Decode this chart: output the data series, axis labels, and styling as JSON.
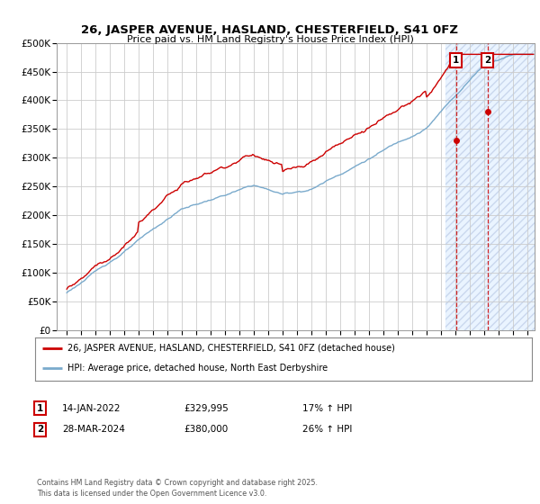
{
  "title": "26, JASPER AVENUE, HASLAND, CHESTERFIELD, S41 0FZ",
  "subtitle": "Price paid vs. HM Land Registry's House Price Index (HPI)",
  "ylim": [
    0,
    500000
  ],
  "yticks": [
    0,
    50000,
    100000,
    150000,
    200000,
    250000,
    300000,
    350000,
    400000,
    450000,
    500000
  ],
  "ytick_labels": [
    "£0",
    "£50K",
    "£100K",
    "£150K",
    "£200K",
    "£250K",
    "£300K",
    "£350K",
    "£400K",
    "£450K",
    "£500K"
  ],
  "legend1_label": "26, JASPER AVENUE, HASLAND, CHESTERFIELD, S41 0FZ (detached house)",
  "legend2_label": "HPI: Average price, detached house, North East Derbyshire",
  "annotation1_date": "14-JAN-2022",
  "annotation1_price": "£329,995",
  "annotation1_hpi": "17% ↑ HPI",
  "annotation2_date": "28-MAR-2024",
  "annotation2_price": "£380,000",
  "annotation2_hpi": "26% ↑ HPI",
  "copyright_text": "Contains HM Land Registry data © Crown copyright and database right 2025.\nThis data is licensed under the Open Government Licence v3.0.",
  "red_color": "#cc0000",
  "blue_color": "#7aaacc",
  "background_color": "#ffffff",
  "grid_color": "#cccccc",
  "shade_color": "#ddeeff",
  "shade_alpha": 0.6,
  "xlim_left": 1994.3,
  "xlim_right": 2027.5,
  "sale1_x": 2022.04,
  "sale1_y": 329995,
  "sale2_x": 2024.24,
  "sale2_y": 380000,
  "shade_start": 2021.3
}
